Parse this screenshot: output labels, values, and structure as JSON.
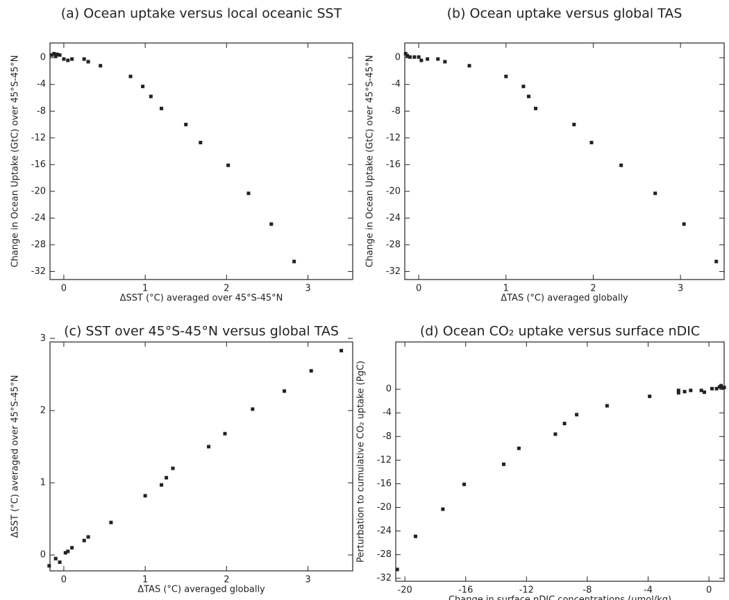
{
  "chart_data": [
    {
      "type": "scatter",
      "title": "(a) Ocean uptake versus local oceanic SST",
      "xlabel": "ΔSST (°C) averaged over 45°S-45°N",
      "ylabel": "Change in Ocean Uptake (GtC) over 45°S-45°N",
      "x": [
        -0.15,
        -0.12,
        -0.1,
        -0.08,
        -0.05,
        0,
        0.05,
        0.1,
        0.25,
        0.3,
        0.45,
        0.82,
        0.97,
        1.07,
        1.2,
        1.5,
        1.68,
        2.02,
        2.27,
        2.55,
        2.83
      ],
      "y": [
        0.4,
        0.6,
        0.2,
        0.5,
        0.4,
        -0.2,
        -0.4,
        -0.2,
        -0.2,
        -0.6,
        -1.2,
        -2.8,
        -4.3,
        -5.8,
        -7.6,
        -10,
        -12.7,
        -16.1,
        -20.3,
        -24.9,
        -30.5
      ],
      "xlim": [
        -0.17,
        3.55
      ],
      "ylim": [
        -33.2,
        2.2
      ],
      "xticks": [
        0,
        1,
        2,
        3
      ],
      "yticks": [
        0,
        -4,
        -8,
        -12,
        -16,
        -20,
        -24,
        -28,
        -32
      ],
      "color": "#222222"
    },
    {
      "type": "scatter",
      "title": "(b) Ocean uptake versus global TAS",
      "xlabel": "ΔTAS (°C) averaged globally",
      "ylabel": "Change in Ocean Uptake (GtC) over 45°S-45°N",
      "x": [
        -0.15,
        -0.13,
        -0.1,
        -0.05,
        0,
        0.03,
        0.1,
        0.22,
        0.3,
        0.58,
        1.0,
        1.2,
        1.26,
        1.34,
        1.78,
        1.98,
        2.32,
        2.71,
        3.04,
        3.41
      ],
      "y": [
        0.6,
        0.3,
        0.1,
        0.1,
        0.1,
        -0.4,
        -0.2,
        -0.2,
        -0.6,
        -1.2,
        -2.8,
        -4.3,
        -5.8,
        -7.6,
        -10,
        -12.7,
        -16.1,
        -20.3,
        -24.9,
        -30.5
      ],
      "xlim": [
        -0.16,
        3.5
      ],
      "ylim": [
        -33.2,
        2.2
      ],
      "xticks": [
        0,
        1,
        2,
        3
      ],
      "yticks": [
        0,
        -4,
        -8,
        -12,
        -16,
        -20,
        -24,
        -28,
        -32
      ],
      "color": "#222222"
    },
    {
      "type": "scatter",
      "title": "(c) SST over 45°S-45°N versus global TAS",
      "xlabel": "ΔTAS (°C) averaged globally",
      "ylabel": "ΔSST (°C) averaged over 45°S-45°N",
      "x": [
        -0.18,
        -0.1,
        -0.05,
        0.02,
        0.05,
        0.1,
        0.25,
        0.3,
        0.58,
        1.0,
        1.2,
        1.26,
        1.34,
        1.78,
        1.98,
        2.32,
        2.71,
        3.04,
        3.41
      ],
      "y": [
        -0.15,
        -0.05,
        -0.1,
        0.03,
        0.05,
        0.1,
        0.2,
        0.25,
        0.45,
        0.82,
        0.97,
        1.07,
        1.2,
        1.5,
        1.68,
        2.02,
        2.27,
        2.55,
        2.83
      ],
      "xlim": [
        -0.17,
        3.55
      ],
      "ylim": [
        -0.22,
        2.95
      ],
      "xticks": [
        0,
        1,
        2,
        3
      ],
      "yticks": [
        0,
        1,
        2,
        3
      ],
      "color": "#222222"
    },
    {
      "type": "scatter",
      "title": "(d) Ocean CO₂ uptake versus surface nDIC",
      "xlabel": "Change in surface nDIC concentrations (µmol/kg)",
      "ylabel": "Perturbation to cumulative CO₂ uptake (PgC)",
      "x": [
        -20.5,
        -19.3,
        -17.5,
        -16.1,
        -13.5,
        -12.5,
        -10.1,
        -9.5,
        -8.7,
        -6.7,
        -3.9,
        -2,
        -2,
        -1.6,
        -1.2,
        -0.5,
        -0.3,
        0.2,
        0.5,
        0.7,
        0.8,
        0.9,
        1
      ],
      "y": [
        -30.5,
        -24.9,
        -20.3,
        -16.1,
        -12.7,
        -10,
        -7.6,
        -5.8,
        -4.3,
        -2.8,
        -1.2,
        -0.2,
        -0.6,
        -0.4,
        -0.2,
        -0.2,
        -0.5,
        0.1,
        0.1,
        0.4,
        0.6,
        0.2,
        0.3
      ],
      "xlim": [
        -20.6,
        1.0
      ],
      "ylim": [
        -32.5,
        8
      ],
      "xticks": [
        -20,
        -16,
        -12,
        -8,
        -4,
        0
      ],
      "yticks": [
        0,
        -4,
        -8,
        -12,
        -16,
        -20,
        -24,
        -28,
        -32
      ],
      "color": "#222222"
    }
  ]
}
